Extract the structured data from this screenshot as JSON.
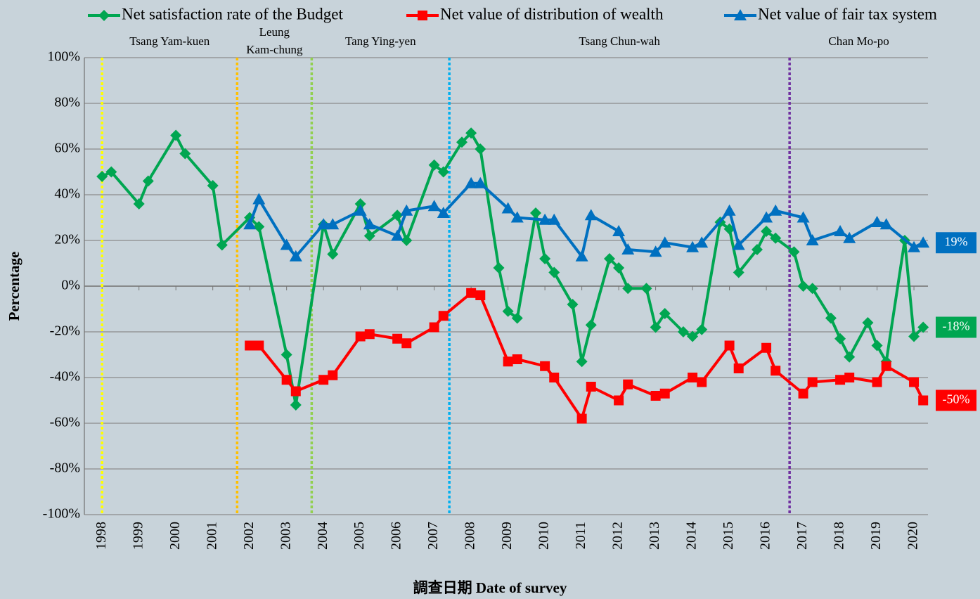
{
  "chart_data": {
    "type": "line",
    "xlabel": "調查日期 Date of  survey",
    "ylabel": "Percentage",
    "xlim": [
      1997.52,
      2020.38
    ],
    "ylim": [
      -100,
      100
    ],
    "xticks": [
      1998,
      1999,
      2000,
      2001,
      2002,
      2003,
      2004,
      2005,
      2006,
      2007,
      2008,
      2009,
      2010,
      2011,
      2012,
      2013,
      2014,
      2015,
      2016,
      2017,
      2018,
      2019,
      2020
    ],
    "yticks": [
      {
        "value": -100,
        "label": "-100%"
      },
      {
        "value": -80,
        "label": "-80%"
      },
      {
        "value": -60,
        "label": "-60%"
      },
      {
        "value": -40,
        "label": "-40%"
      },
      {
        "value": -20,
        "label": "-20%"
      },
      {
        "value": 0,
        "label": "0%"
      },
      {
        "value": 20,
        "label": "20%"
      },
      {
        "value": 40,
        "label": "40%"
      },
      {
        "value": 60,
        "label": "60%"
      },
      {
        "value": 80,
        "label": "80%"
      },
      {
        "value": 100,
        "label": "100%"
      }
    ],
    "grid": true,
    "legend": "top",
    "annotations": [
      {
        "label": "Tsang Yam-kuen",
        "x": 1998.0,
        "color": "#ffff00"
      },
      {
        "label": "Leung Kam-chung",
        "x": 2001.66,
        "color": "#ffc000"
      },
      {
        "label": "Tang Ying-yen",
        "x": 2003.68,
        "color": "#92d050"
      },
      {
        "label": "Tsang Chun-wah",
        "x": 2007.41,
        "color": "#00b0f0"
      },
      {
        "label": "Chan Mo-po",
        "x": 2016.63,
        "color": "#7030a0"
      }
    ],
    "series": [
      {
        "name": "Net satisfaction rate of the Budget",
        "color": "#00a651",
        "marker": "diamond",
        "x": [
          1998.0,
          1998.25,
          1999.0,
          1999.25,
          2000.0,
          2000.25,
          2001.0,
          2001.25,
          2002.0,
          2002.25,
          2003.0,
          2003.25,
          2004.0,
          2004.25,
          2005.0,
          2005.25,
          2006.0,
          2006.25,
          2007.0,
          2007.25,
          2007.75,
          2008.0,
          2008.25,
          2008.75,
          2009.0,
          2009.25,
          2009.75,
          2010.0,
          2010.25,
          2010.75,
          2011.0,
          2011.25,
          2011.75,
          2012.0,
          2012.25,
          2012.75,
          2013.0,
          2013.25,
          2013.75,
          2014.0,
          2014.25,
          2014.75,
          2015.0,
          2015.25,
          2015.75,
          2016.0,
          2016.25,
          2016.75,
          2017.0,
          2017.25,
          2017.75,
          2018.0,
          2018.25,
          2018.75,
          2019.0,
          2019.25,
          2019.75,
          2020.0,
          2020.25
        ],
        "values": [
          48,
          50,
          36,
          46,
          66,
          58,
          44,
          18,
          30,
          26,
          -30,
          -52,
          27,
          14,
          36,
          22,
          31,
          20,
          53,
          50,
          63,
          67,
          60,
          8,
          -11,
          -14,
          32,
          12,
          6,
          -8,
          -33,
          -17,
          12,
          8,
          -1,
          -1,
          -18,
          -12,
          -20,
          -22,
          -19,
          28,
          25,
          6,
          16,
          24,
          21,
          15,
          0,
          -1,
          -14,
          -23,
          -31,
          -16,
          -26,
          -33,
          20,
          -22,
          -18
        ],
        "end_label": "-18%"
      },
      {
        "name": "Net value of distribution of wealth",
        "color": "#ff0000",
        "marker": "square",
        "x": [
          2002.0,
          2002.25,
          2003.0,
          2003.25,
          2004.0,
          2004.25,
          2005.0,
          2005.25,
          2006.0,
          2006.25,
          2007.0,
          2007.25,
          2008.0,
          2008.25,
          2009.0,
          2009.25,
          2010.0,
          2010.25,
          2011.0,
          2011.25,
          2012.0,
          2012.25,
          2013.0,
          2013.25,
          2014.0,
          2014.25,
          2015.0,
          2015.25,
          2016.0,
          2016.25,
          2017.0,
          2017.25,
          2018.0,
          2018.25,
          2019.0,
          2019.25,
          2020.0,
          2020.25
        ],
        "values": [
          -26,
          -26,
          -41,
          -46,
          -41,
          -39,
          -22,
          -21,
          -23,
          -25,
          -18,
          -13,
          -3,
          -4,
          -33,
          -32,
          -35,
          -40,
          -58,
          -44,
          -50,
          -43,
          -48,
          -47,
          -40,
          -42,
          -26,
          -36,
          -27,
          -37,
          -47,
          -42,
          -41,
          -40,
          -42,
          -35,
          -42,
          -50
        ],
        "end_label": "-50%"
      },
      {
        "name": "Net value of fair tax system",
        "color": "#0070c0",
        "marker": "triangle",
        "x": [
          2002.0,
          2002.25,
          2003.0,
          2003.25,
          2004.0,
          2004.25,
          2005.0,
          2005.25,
          2006.0,
          2006.25,
          2007.0,
          2007.25,
          2008.0,
          2008.25,
          2009.0,
          2009.25,
          2010.0,
          2010.25,
          2011.0,
          2011.25,
          2012.0,
          2012.25,
          2013.0,
          2013.25,
          2014.0,
          2014.25,
          2015.0,
          2015.25,
          2016.0,
          2016.25,
          2017.0,
          2017.25,
          2018.0,
          2018.25,
          2019.0,
          2019.25,
          2020.0,
          2020.25
        ],
        "values": [
          27,
          38,
          18,
          13,
          27,
          27,
          33,
          27,
          22,
          33,
          35,
          32,
          45,
          45,
          34,
          30,
          29,
          29,
          13,
          31,
          24,
          16,
          15,
          19,
          17,
          19,
          33,
          18,
          30,
          33,
          30,
          20,
          24,
          21,
          28,
          27,
          17,
          19
        ],
        "end_label": "19%"
      }
    ]
  }
}
